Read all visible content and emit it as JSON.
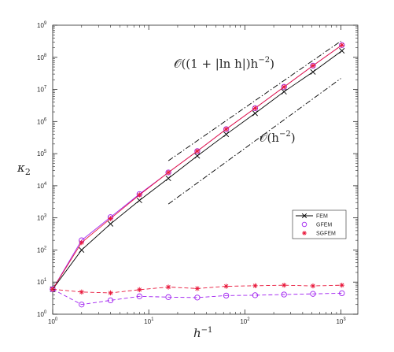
{
  "chart_data": {
    "type": "line",
    "xscale": "log",
    "yscale": "log",
    "xlim": [
      1,
      1500
    ],
    "ylim": [
      1,
      1000000000
    ],
    "xticks": [
      {
        "value": 1,
        "base": "10",
        "exp": "0"
      },
      {
        "value": 10,
        "base": "10",
        "exp": "1"
      },
      {
        "value": 100,
        "base": "10",
        "exp": "2"
      },
      {
        "value": 1000,
        "base": "10",
        "exp": "3"
      }
    ],
    "yticks": [
      {
        "value": 1,
        "base": "10",
        "exp": "0"
      },
      {
        "value": 10,
        "base": "10",
        "exp": "1"
      },
      {
        "value": 100,
        "base": "10",
        "exp": "2"
      },
      {
        "value": 1000,
        "base": "10",
        "exp": "3"
      },
      {
        "value": 10000,
        "base": "10",
        "exp": "4"
      },
      {
        "value": 100000,
        "base": "10",
        "exp": "5"
      },
      {
        "value": 1000000,
        "base": "10",
        "exp": "6"
      },
      {
        "value": 10000000,
        "base": "10",
        "exp": "7"
      },
      {
        "value": 100000000,
        "base": "10",
        "exp": "8"
      },
      {
        "value": 1000000000,
        "base": "10",
        "exp": "9"
      }
    ],
    "xlabel": "h",
    "xlabel_sup": "−1",
    "ylabel": "κ",
    "ylabel_sub": "2",
    "grid": false,
    "legend_position": "right",
    "series": [
      {
        "name": "FEM",
        "color": "#000000",
        "marker": "x",
        "line": "solid",
        "x": [
          1,
          2,
          4,
          8,
          16,
          32,
          64,
          128,
          256,
          512,
          1024
        ],
        "y": [
          6,
          100,
          650,
          3500,
          17000,
          85000,
          400000,
          1800000,
          8500000,
          35000000,
          160000000
        ]
      },
      {
        "name": "GFEM",
        "color": "#a020f0",
        "marker": "o",
        "line": "solid",
        "x": [
          1,
          2,
          4,
          8,
          16,
          32,
          64,
          128,
          256,
          512,
          1024
        ],
        "y": [
          6,
          200,
          1050,
          5500,
          26000,
          120000,
          580000,
          2600000,
          12000000,
          55000000,
          240000000
        ]
      },
      {
        "name": "SGFEM",
        "color": "#e8173a",
        "marker": "*",
        "line": "solid",
        "x": [
          1,
          2,
          4,
          8,
          16,
          32,
          64,
          128,
          256,
          512,
          1024
        ],
        "y": [
          6,
          170,
          950,
          5200,
          26000,
          120000,
          580000,
          2600000,
          12000000,
          55000000,
          240000000
        ]
      },
      {
        "name": "GFEM",
        "color": "#a020f0",
        "marker": "o",
        "line": "dashed",
        "legend": false,
        "x": [
          1,
          2,
          4,
          8,
          16,
          32,
          64,
          128,
          256,
          512,
          1024
        ],
        "y": [
          6,
          2,
          2.7,
          3.6,
          3.4,
          3.3,
          3.8,
          3.9,
          4.1,
          4.3,
          4.5
        ]
      },
      {
        "name": "SGFEM",
        "color": "#e8173a",
        "marker": "*",
        "line": "dashed",
        "legend": false,
        "x": [
          1,
          2,
          4,
          8,
          16,
          32,
          64,
          128,
          256,
          512,
          1024
        ],
        "y": [
          6,
          4.9,
          4.6,
          5.8,
          7,
          6.3,
          7.4,
          7.7,
          8,
          7.6,
          8
        ]
      }
    ],
    "reference_lines": [
      {
        "name": "upper",
        "style": "dashdot",
        "x": [
          16,
          1000
        ],
        "y": [
          60000,
          320000000
        ]
      },
      {
        "name": "lower",
        "style": "dashdot",
        "x": [
          16,
          1000
        ],
        "y": [
          2700,
          22000000
        ]
      }
    ],
    "annotations": [
      {
        "id": "upper",
        "text": "𝒪((1 + |ln h|)h",
        "sup": "−2",
        "tail": ")",
        "x": 40,
        "y": 150000000
      },
      {
        "id": "lower",
        "text": "𝒪(h",
        "sup": "−2",
        "tail": ")",
        "x": 170,
        "y": 250000
      }
    ]
  }
}
